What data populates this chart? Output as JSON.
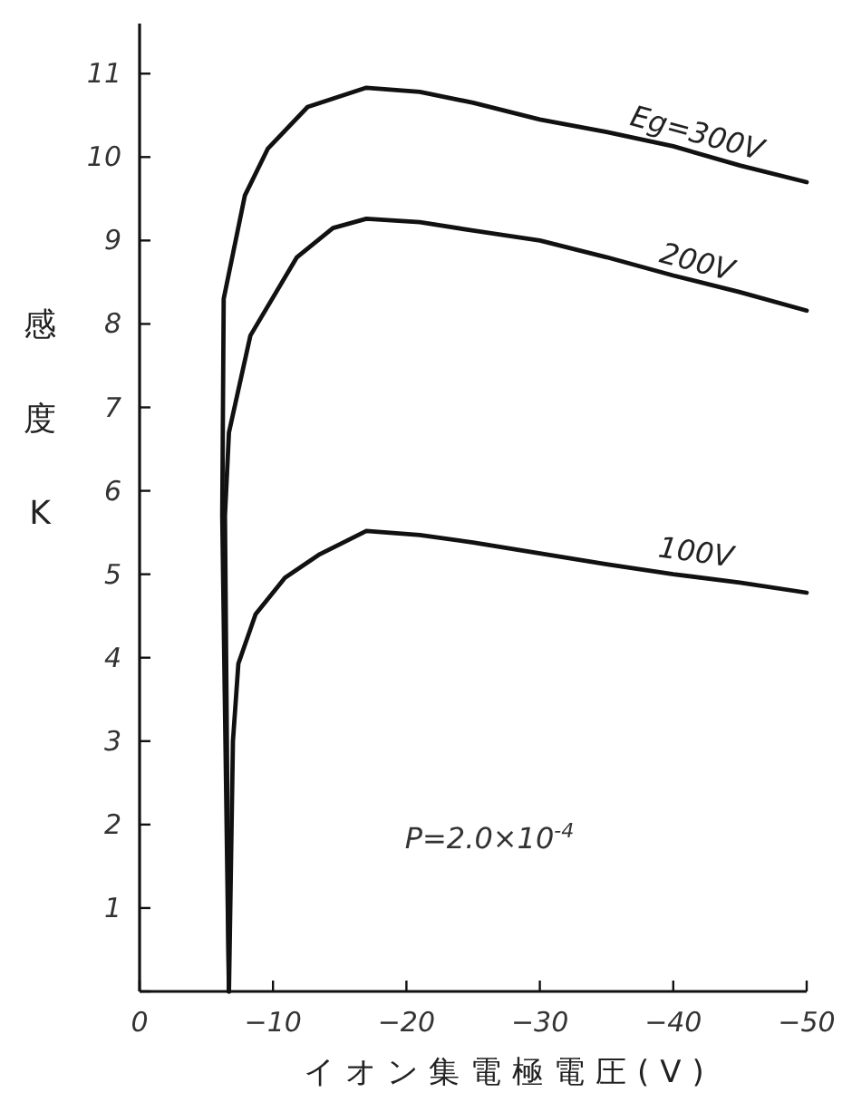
{
  "chart_data": {
    "type": "line",
    "xlabel": "イオン集電極電圧(V)",
    "ylabel": "感度K",
    "xlim": [
      0,
      -50
    ],
    "ylim": [
      0,
      11.6
    ],
    "xticks": [
      0,
      -10,
      -20,
      -30,
      -40,
      -50
    ],
    "yticks": [
      {
        "value": 0,
        "label": null
      },
      1,
      2,
      3,
      4,
      5,
      6,
      7,
      8,
      9,
      10,
      11
    ],
    "grid": false,
    "marker": "none",
    "line_style": "solid",
    "annotations": [
      "P=2.0×10$^{-4}$"
    ],
    "series": [
      {
        "name": "Eg=300V",
        "color": "#111111",
        "x": [
          -6.7,
          -6.2,
          -6.3,
          -7.9,
          -9.6,
          -12.6,
          -17,
          -21,
          -25,
          -30,
          -35,
          -40,
          -45,
          -50
        ],
        "values": [
          0,
          5.7,
          8.3,
          9.54,
          10.1,
          10.6,
          10.83,
          10.78,
          10.65,
          10.45,
          10.3,
          10.13,
          9.9,
          9.7
        ]
      },
      {
        "name": "200V",
        "color": "#111111",
        "x": [
          -6.7,
          -6.4,
          -6.7,
          -8.3,
          -11.8,
          -14.5,
          -17,
          -21,
          -25,
          -30,
          -35,
          -40,
          -45,
          -50
        ],
        "values": [
          0,
          5.7,
          6.7,
          7.86,
          8.8,
          9.15,
          9.26,
          9.22,
          9.12,
          9.0,
          8.8,
          8.58,
          8.38,
          8.16
        ]
      },
      {
        "name": "100V",
        "color": "#111111",
        "x": [
          -6.7,
          -7.0,
          -7.4,
          -8.7,
          -10.9,
          -13.5,
          -17,
          -21,
          -25,
          -30,
          -35,
          -40,
          -45,
          -50
        ],
        "values": [
          0,
          3,
          3.93,
          4.52,
          4.96,
          5.24,
          5.52,
          5.47,
          5.38,
          5.25,
          5.12,
          5.0,
          4.9,
          4.78
        ]
      }
    ]
  }
}
